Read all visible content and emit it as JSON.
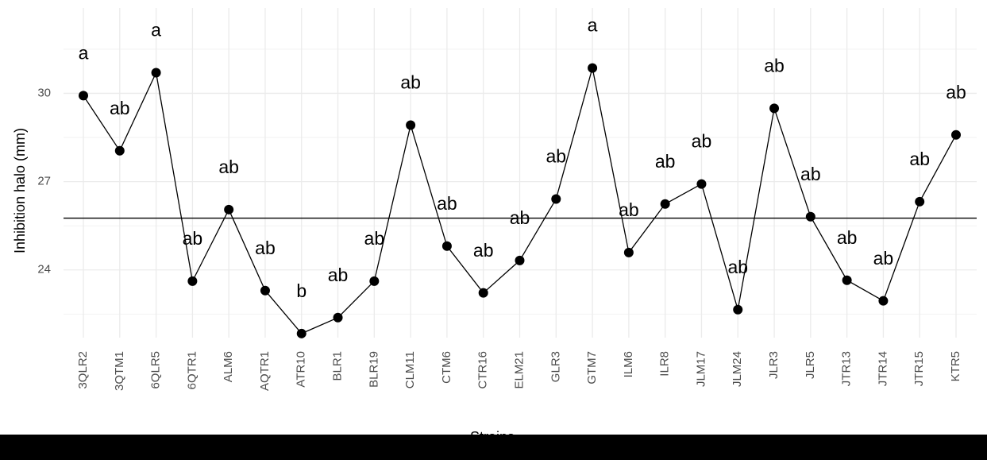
{
  "chart_data": {
    "type": "line",
    "x_label": "Strains",
    "y_label": "Inhibition halo (mm)",
    "categories": [
      "3QLR2",
      "3QTM1",
      "6QLR5",
      "6QTR1",
      "ALM6",
      "AQTR1",
      "ATR10",
      "BLR1",
      "BLR19",
      "CLM11",
      "CTM6",
      "CTR16",
      "ELM21",
      "GLR3",
      "GTM7",
      "ILM6",
      "ILR8",
      "JLM17",
      "JLM24",
      "JLR3",
      "JLR5",
      "JTR13",
      "JTR14",
      "JTR15",
      "KTR5"
    ],
    "values": [
      29.92,
      28.05,
      30.7,
      23.62,
      26.05,
      23.3,
      21.84,
      22.38,
      23.62,
      28.92,
      24.81,
      23.22,
      24.32,
      26.41,
      30.86,
      24.59,
      26.24,
      26.92,
      22.65,
      29.49,
      25.81,
      23.65,
      22.95,
      26.32,
      28.59
    ],
    "value_labels": [
      "a",
      "ab",
      "a",
      "ab",
      "ab",
      "ab",
      "b",
      "ab",
      "ab",
      "ab",
      "ab",
      "ab",
      "ab",
      "ab",
      "a",
      "ab",
      "ab",
      "ab",
      "ab",
      "ab",
      "ab",
      "ab",
      "ab",
      "ab",
      "ab"
    ],
    "color": "#000000",
    "hline": 25.76,
    "ylim": [
      21.7,
      32.9
    ],
    "yticks": [
      24,
      27,
      30
    ],
    "grid": true
  }
}
